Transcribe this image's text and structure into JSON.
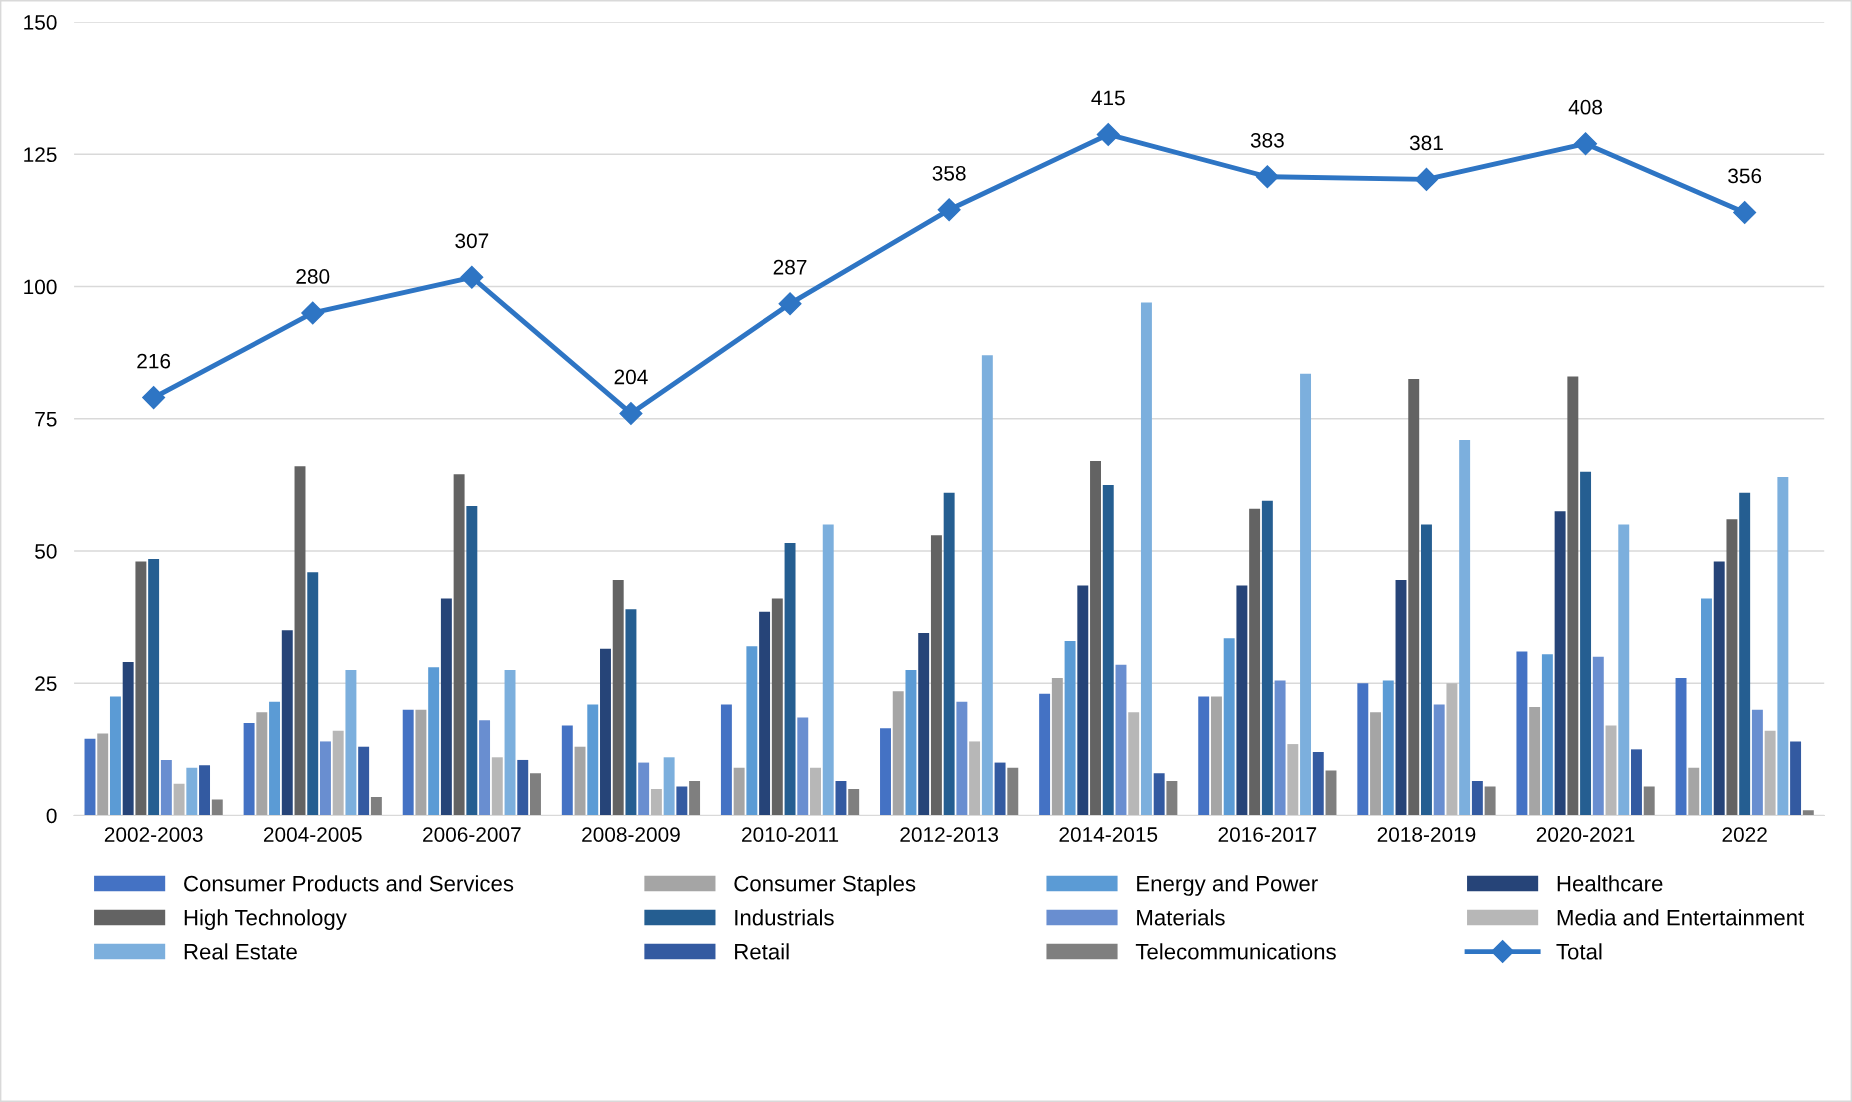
{
  "chart_data": {
    "type": "bar",
    "categories": [
      "2002-2003",
      "2004-2005",
      "2006-2007",
      "2008-2009",
      "2010-2011",
      "2012-2013",
      "2014-2015",
      "2016-2017",
      "2018-2019",
      "2020-2021",
      "2022"
    ],
    "ylim": [
      0,
      150
    ],
    "yticks": [
      0,
      25,
      50,
      75,
      100,
      125,
      150
    ],
    "y2lim": [
      -100,
      500
    ],
    "tick_labels": "xy",
    "grid": "y",
    "legend": "bottom",
    "series": [
      {
        "name": "Consumer Products and Services",
        "color": "#4472c4",
        "values": [
          14.5,
          17.5,
          20,
          17,
          21,
          16.5,
          23,
          22.5,
          25,
          31,
          26
        ]
      },
      {
        "name": "Consumer Staples",
        "color": "#a5a5a5",
        "values": [
          15.5,
          19.5,
          20,
          13,
          9,
          23.5,
          26,
          22.5,
          19.5,
          20.5,
          9
        ]
      },
      {
        "name": "Energy and Power",
        "color": "#5b9bd5",
        "values": [
          22.5,
          21.5,
          28,
          21,
          32,
          27.5,
          33,
          33.5,
          25.5,
          30.5,
          41
        ]
      },
      {
        "name": "Healthcare",
        "color": "#264478",
        "values": [
          29,
          35,
          41,
          31.5,
          38.5,
          34.5,
          43.5,
          43.5,
          44.5,
          57.5,
          48
        ]
      },
      {
        "name": "High Technology",
        "color": "#636363",
        "values": [
          48,
          66,
          64.5,
          44.5,
          41,
          53,
          67,
          58,
          82.5,
          83,
          56
        ]
      },
      {
        "name": "Industrials",
        "color": "#255e91",
        "values": [
          48.5,
          46,
          58.5,
          39,
          51.5,
          61,
          62.5,
          59.5,
          55,
          65,
          61
        ]
      },
      {
        "name": "Materials",
        "color": "#698ed0",
        "values": [
          10.5,
          14,
          18,
          10,
          18.5,
          21.5,
          28.5,
          25.5,
          21,
          30,
          20
        ]
      },
      {
        "name": "Media and Entertainment",
        "color": "#b7b7b7",
        "values": [
          6,
          16,
          11,
          5,
          9,
          14,
          19.5,
          13.5,
          25,
          17,
          16
        ]
      },
      {
        "name": "Real Estate",
        "color": "#7cafdd",
        "values": [
          9,
          27.5,
          27.5,
          11,
          55,
          87,
          97,
          83.5,
          71,
          55,
          64
        ]
      },
      {
        "name": "Retail",
        "color": "#335aa1",
        "values": [
          9.5,
          13,
          10.5,
          5.5,
          6.5,
          10,
          8,
          12,
          6.5,
          12.5,
          14
        ]
      },
      {
        "name": "Telecommunications",
        "color": "#7f7f7f",
        "values": [
          3,
          3.5,
          8,
          6.5,
          5,
          9,
          6.5,
          8.5,
          5.5,
          5.5,
          1
        ]
      },
      {
        "name": "Total",
        "type": "line",
        "axis": "y2",
        "color": "#2e75c4",
        "marker": "diamond",
        "line_style": "solid",
        "values": [
          216,
          280,
          307,
          204,
          287,
          358,
          415,
          383,
          381,
          408,
          356
        ],
        "value_labels": [
          "216",
          "280",
          "307",
          "204",
          "287",
          "358",
          "415",
          "383",
          "381",
          "408",
          "356"
        ]
      }
    ]
  }
}
